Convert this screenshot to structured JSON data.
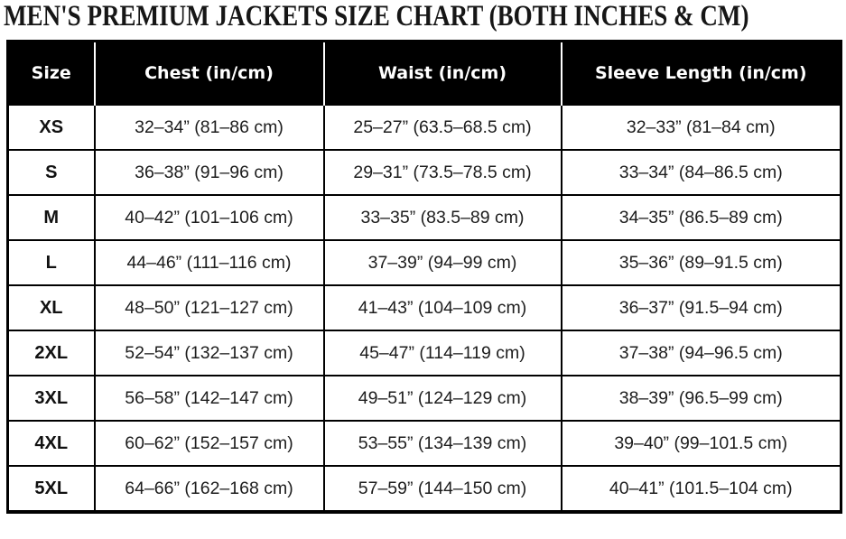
{
  "title": "MEN'S PREMIUM JACKETS SIZE CHART (BOTH INCHES & CM)",
  "colors": {
    "header_bg": "#000000",
    "header_text": "#ffffff",
    "body_text": "#1d1d1d",
    "border": "#000000",
    "background": "#ffffff"
  },
  "chart_data": {
    "type": "table",
    "title": "MEN'S PREMIUM JACKETS SIZE CHART (BOTH INCHES & CM)",
    "columns": [
      "Size",
      "Chest (in/cm)",
      "Waist (in/cm)",
      "Sleeve Length (in/cm)"
    ],
    "rows": [
      [
        "XS",
        "32–34” (81–86 cm)",
        "25–27” (63.5–68.5 cm)",
        "32–33” (81–84 cm)"
      ],
      [
        "S",
        "36–38” (91–96 cm)",
        "29–31” (73.5–78.5 cm)",
        "33–34” (84–86.5 cm)"
      ],
      [
        "M",
        "40–42” (101–106 cm)",
        "33–35” (83.5–89 cm)",
        "34–35” (86.5–89 cm)"
      ],
      [
        "L",
        "44–46” (111–116 cm)",
        "37–39” (94–99 cm)",
        "35–36” (89–91.5 cm)"
      ],
      [
        "XL",
        "48–50” (121–127 cm)",
        "41–43” (104–109 cm)",
        "36–37” (91.5–94 cm)"
      ],
      [
        "2XL",
        "52–54” (132–137 cm)",
        "45–47” (114–119 cm)",
        "37–38” (94–96.5 cm)"
      ],
      [
        "3XL",
        "56–58” (142–147 cm)",
        "49–51” (124–129 cm)",
        "38–39” (96.5–99 cm)"
      ],
      [
        "4XL",
        "60–62” (152–157 cm)",
        "53–55” (134–139 cm)",
        "39–40” (99–101.5 cm)"
      ],
      [
        "5XL",
        "64–66” (162–168 cm)",
        "57–59” (144–150 cm)",
        "40–41” (101.5–104 cm)"
      ]
    ]
  }
}
